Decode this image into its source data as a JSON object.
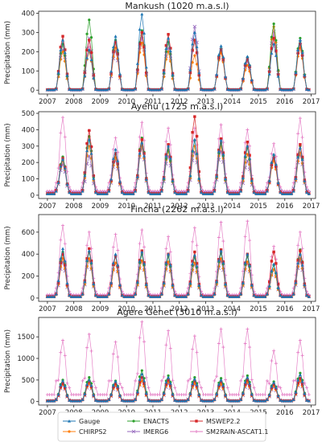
{
  "chart_data": {
    "type": "line",
    "x_ticks": [
      "2007",
      "2008",
      "2009",
      "2010",
      "2011",
      "2012",
      "2013",
      "2014",
      "2015",
      "2016",
      "2017"
    ],
    "x_range": [
      "2006-09",
      "2017-03"
    ],
    "series_styles": [
      {
        "name": "Gauge",
        "color": "#1f77b4",
        "marker": "triangle"
      },
      {
        "name": "CHIRPS2",
        "color": "#ff7f0e",
        "marker": "circle"
      },
      {
        "name": "ENACTS",
        "color": "#2ca02c",
        "marker": "circle"
      },
      {
        "name": "IMERG6",
        "color": "#9467bd",
        "marker": "x"
      },
      {
        "name": "MSWEP2.2",
        "color": "#d62728",
        "marker": "square"
      },
      {
        "name": "SM2RAIN-ASCAT1.1",
        "color": "#e377c2",
        "marker": "plus"
      }
    ],
    "legend": {
      "placement": "bottom-center",
      "columns": 3
    },
    "months": [
      "2007-01",
      "2007-02",
      "2007-03",
      "2007-04",
      "2007-05",
      "2007-06",
      "2007-07",
      "2007-08",
      "2007-09",
      "2007-10",
      "2007-11",
      "2007-12",
      "2008-01",
      "2008-02",
      "2008-03",
      "2008-04",
      "2008-05",
      "2008-06",
      "2008-07",
      "2008-08",
      "2008-09",
      "2008-10",
      "2008-11",
      "2008-12",
      "2009-01",
      "2009-02",
      "2009-03",
      "2009-04",
      "2009-05",
      "2009-06",
      "2009-07",
      "2009-08",
      "2009-09",
      "2009-10",
      "2009-11",
      "2009-12",
      "2010-01",
      "2010-02",
      "2010-03",
      "2010-04",
      "2010-05",
      "2010-06",
      "2010-07",
      "2010-08",
      "2010-09",
      "2010-10",
      "2010-11",
      "2010-12",
      "2011-01",
      "2011-02",
      "2011-03",
      "2011-04",
      "2011-05",
      "2011-06",
      "2011-07",
      "2011-08",
      "2011-09",
      "2011-10",
      "2011-11",
      "2011-12",
      "2012-01",
      "2012-02",
      "2012-03",
      "2012-04",
      "2012-05",
      "2012-06",
      "2012-07",
      "2012-08",
      "2012-09",
      "2012-10",
      "2012-11",
      "2012-12",
      "2013-01",
      "2013-02",
      "2013-03",
      "2013-04",
      "2013-05",
      "2013-06",
      "2013-07",
      "2013-08",
      "2013-09",
      "2013-10",
      "2013-11",
      "2013-12",
      "2014-01",
      "2014-02",
      "2014-03",
      "2014-04",
      "2014-05",
      "2014-06",
      "2014-07",
      "2014-08",
      "2014-09",
      "2014-10",
      "2014-11",
      "2014-12",
      "2015-01",
      "2015-02",
      "2015-03",
      "2015-04",
      "2015-05",
      "2015-06",
      "2015-07",
      "2015-08",
      "2015-09",
      "2015-10",
      "2015-11",
      "2015-12",
      "2016-01",
      "2016-02",
      "2016-03",
      "2016-04",
      "2016-05",
      "2016-06",
      "2016-07",
      "2016-08",
      "2016-09",
      "2016-10",
      "2016-11",
      "2016-12"
    ],
    "panels": [
      {
        "title": "Mankush (1020 m.a.s.l)",
        "ylabel": "Precipitation (mm)",
        "ylim": [
          -20,
          410
        ],
        "yticks": [
          0,
          100,
          200,
          300,
          400
        ],
        "peak_years": [
          2007,
          2008,
          2009,
          2010,
          2011,
          2012,
          2013,
          2014,
          2015,
          2016
        ],
        "peaks": [
          [
            260,
            210,
            280,
            395,
            270,
            300,
            230,
            175,
            240,
            260
          ],
          [
            200,
            200,
            220,
            245,
            200,
            180,
            195,
            130,
            330,
            220
          ],
          [
            240,
            365,
            260,
            310,
            250,
            260,
            215,
            170,
            345,
            270
          ],
          [
            210,
            270,
            205,
            280,
            220,
            330,
            210,
            150,
            305,
            250
          ],
          [
            280,
            260,
            250,
            300,
            290,
            260,
            210,
            160,
            270,
            240
          ],
          [
            235,
            225,
            240,
            270,
            245,
            250,
            215,
            170,
            280,
            240
          ]
        ],
        "baseline": [
          2,
          3,
          3,
          2,
          2,
          2
        ]
      },
      {
        "title": "Ayehu (1725 m.a.s.l)",
        "ylabel": "Precipitation (mm)",
        "ylim": [
          -20,
          510
        ],
        "yticks": [
          0,
          100,
          200,
          300,
          400,
          500
        ],
        "peak_years": [
          2007,
          2008,
          2009,
          2010,
          2011,
          2012,
          2013,
          2014,
          2015,
          2016
        ],
        "peaks": [
          [
            220,
            340,
            280,
            320,
            300,
            340,
            335,
            300,
            250,
            290
          ],
          [
            210,
            300,
            230,
            300,
            270,
            300,
            300,
            250,
            210,
            260
          ],
          [
            235,
            360,
            250,
            350,
            280,
            335,
            320,
            290,
            245,
            300
          ],
          [
            190,
            240,
            215,
            290,
            240,
            265,
            270,
            210,
            220,
            250
          ],
          [
            225,
            395,
            255,
            340,
            310,
            480,
            345,
            325,
            230,
            310
          ],
          [
            475,
            395,
            350,
            445,
            410,
            410,
            430,
            400,
            315,
            470
          ]
        ],
        "baseline": [
          8,
          8,
          9,
          14,
          10,
          25
        ]
      },
      {
        "title": "Fincha (2262 m.a.s.l)",
        "ylabel": "Precipitation (mm)",
        "ylim": [
          -30,
          760
        ],
        "yticks": [
          0,
          200,
          400,
          600
        ],
        "peak_years": [
          2007,
          2008,
          2009,
          2010,
          2011,
          2012,
          2013,
          2014,
          2015,
          2016
        ],
        "peaks": [
          [
            450,
            430,
            400,
            420,
            400,
            390,
            430,
            400,
            310,
            400
          ],
          [
            360,
            360,
            320,
            340,
            330,
            320,
            360,
            330,
            260,
            360
          ],
          [
            420,
            420,
            380,
            400,
            380,
            370,
            410,
            380,
            300,
            440
          ],
          [
            330,
            350,
            320,
            340,
            320,
            310,
            340,
            320,
            260,
            340
          ],
          [
            400,
            450,
            380,
            430,
            400,
            420,
            440,
            400,
            420,
            430
          ],
          [
            660,
            600,
            580,
            620,
            560,
            640,
            690,
            700,
            470,
            600
          ]
        ],
        "baseline": [
          12,
          10,
          12,
          15,
          12,
          30
        ]
      },
      {
        "title": "Agere Genet (3010 m.a.s.l)",
        "ylabel": "Precipitation (mm)",
        "ylim": [
          -80,
          1950
        ],
        "yticks": [
          0,
          500,
          1000,
          1500
        ],
        "peak_years": [
          2007,
          2008,
          2009,
          2010,
          2011,
          2012,
          2013,
          2014,
          2015,
          2016
        ],
        "peaks": [
          [
            480,
            500,
            470,
            640,
            560,
            520,
            500,
            560,
            440,
            620
          ],
          [
            400,
            420,
            380,
            480,
            450,
            420,
            400,
            450,
            360,
            480
          ],
          [
            500,
            560,
            480,
            720,
            600,
            560,
            540,
            600,
            460,
            660
          ],
          [
            380,
            400,
            360,
            480,
            420,
            400,
            380,
            420,
            340,
            460
          ],
          [
            420,
            460,
            420,
            560,
            500,
            480,
            460,
            500,
            400,
            540
          ],
          [
            1420,
            1560,
            1380,
            1850,
            1640,
            1520,
            1680,
            1680,
            1180,
            1420
          ]
        ],
        "baseline": [
          15,
          12,
          15,
          18,
          14,
          160
        ]
      }
    ]
  }
}
